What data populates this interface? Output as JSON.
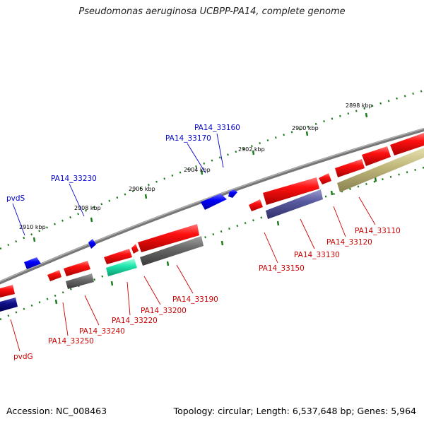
{
  "title": "Pseudomonas aeruginosa UCBPP-PA14, complete genome",
  "footer": {
    "accession": "Accession: NC_008463",
    "summary": "Topology: circular; Length: 6,537,648 bp; Genes: 5,964"
  },
  "scale_labels": [
    "2898 kbp",
    "2900 kbp",
    "2902 kbp",
    "2904 kbp",
    "2906 kbp",
    "2908 kbp",
    "2910 kbp"
  ],
  "genes_forward": [
    "PA14_33160",
    "PA14_33170",
    "PA14_33230",
    "pvdS"
  ],
  "genes_reverse": [
    "PA14_33110",
    "PA14_33120",
    "PA14_33130",
    "PA14_33150",
    "PA14_33190",
    "PA14_33200",
    "PA14_33220",
    "PA14_33240",
    "PA14_33250",
    "pvdG"
  ],
  "colors": {
    "backbone": "#8a8a8a",
    "tick": "#1a7a1a",
    "forward_label": "#0000cc",
    "reverse_label": "#cc0000",
    "cds_red": "#ee0000",
    "cds_blue": "#0000ff",
    "cds_gray": "#666666",
    "cds_purple": "#55559a",
    "cds_olive": "#b8b070",
    "cds_green": "#22ddaa",
    "cds_navy": "#000088"
  }
}
